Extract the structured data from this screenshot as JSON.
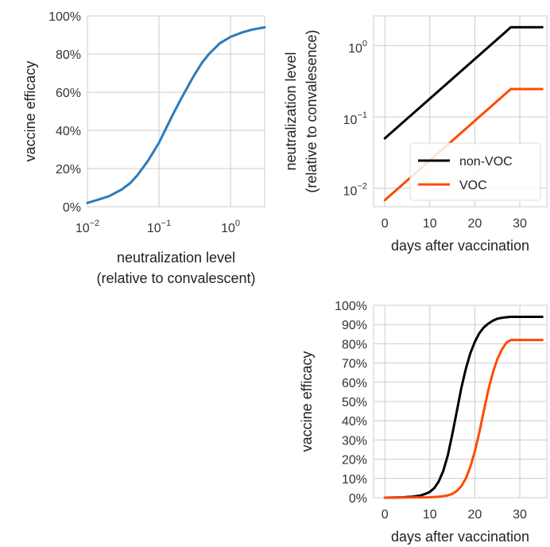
{
  "chart_data": [
    {
      "id": "efficacy-vs-neutralization",
      "type": "line",
      "xscale": "log",
      "xlim": [
        0.01,
        3
      ],
      "ylim": [
        0,
        1
      ],
      "xticks": [
        {
          "value": 0.01,
          "base": "10",
          "exp": "−2"
        },
        {
          "value": 0.1,
          "base": "10",
          "exp": "−1"
        },
        {
          "value": 1,
          "base": "10",
          "exp": "0"
        }
      ],
      "yticks": [
        {
          "value": 0,
          "label": "0%"
        },
        {
          "value": 0.2,
          "label": "20%"
        },
        {
          "value": 0.4,
          "label": "40%"
        },
        {
          "value": 0.6,
          "label": "60%"
        },
        {
          "value": 0.8,
          "label": "80%"
        },
        {
          "value": 1,
          "label": "100%"
        }
      ],
      "xlabel": [
        "neutralization level",
        "(relative to convalescent)"
      ],
      "ylabel": [
        "vaccine efficacy"
      ],
      "grid": true,
      "series": [
        {
          "color": "#2b7bba",
          "x": [
            0.01,
            0.015,
            0.02,
            0.03,
            0.04,
            0.05,
            0.07,
            0.1,
            0.15,
            0.2,
            0.3,
            0.4,
            0.5,
            0.7,
            1.0,
            1.5,
            2.0,
            3.0
          ],
          "y": [
            0.02,
            0.04,
            0.055,
            0.09,
            0.125,
            0.165,
            0.24,
            0.335,
            0.47,
            0.56,
            0.68,
            0.755,
            0.8,
            0.855,
            0.89,
            0.915,
            0.928,
            0.94
          ]
        }
      ]
    },
    {
      "id": "neutralization-vs-days",
      "type": "line",
      "yscale": "log",
      "xlim": [
        -2.5,
        36
      ],
      "ylim": [
        0.0055,
        2.6
      ],
      "xticks": [
        {
          "value": 0,
          "label": "0"
        },
        {
          "value": 10,
          "label": "10"
        },
        {
          "value": 20,
          "label": "20"
        },
        {
          "value": 30,
          "label": "30"
        }
      ],
      "yticks": [
        {
          "value": 0.01,
          "base": "10",
          "exp": "−2"
        },
        {
          "value": 0.1,
          "base": "10",
          "exp": "−1"
        },
        {
          "value": 1,
          "base": "10",
          "exp": "0"
        }
      ],
      "xlabel": [
        "days after vaccination"
      ],
      "ylabel": [
        "neutralization level",
        "(relative to convalesence)"
      ],
      "grid": true,
      "legend": "lower-right",
      "series": [
        {
          "name": "non-VOC",
          "color": "#000000",
          "x": [
            0,
            28,
            35
          ],
          "y": [
            0.05,
            1.8,
            1.8
          ]
        },
        {
          "name": "VOC",
          "color": "#ff4a00",
          "x": [
            0,
            28,
            35
          ],
          "y": [
            0.0068,
            0.245,
            0.245
          ]
        }
      ]
    },
    {
      "id": "efficacy-vs-days",
      "type": "line",
      "xlim": [
        -2.5,
        36
      ],
      "ylim": [
        0,
        1
      ],
      "xticks": [
        {
          "value": 0,
          "label": "0"
        },
        {
          "value": 10,
          "label": "10"
        },
        {
          "value": 20,
          "label": "20"
        },
        {
          "value": 30,
          "label": "30"
        }
      ],
      "yticks": [
        {
          "value": 0,
          "label": "0%"
        },
        {
          "value": 0.1,
          "label": "10%"
        },
        {
          "value": 0.2,
          "label": "20%"
        },
        {
          "value": 0.3,
          "label": "30%"
        },
        {
          "value": 0.4,
          "label": "40%"
        },
        {
          "value": 0.5,
          "label": "50%"
        },
        {
          "value": 0.6,
          "label": "60%"
        },
        {
          "value": 0.7,
          "label": "70%"
        },
        {
          "value": 0.8,
          "label": "80%"
        },
        {
          "value": 0.9,
          "label": "90%"
        },
        {
          "value": 1,
          "label": "100%"
        }
      ],
      "xlabel": [
        "days after vaccination"
      ],
      "ylabel": [
        "vaccine efficacy"
      ],
      "grid": true,
      "series": [
        {
          "color": "#000000",
          "x": [
            0,
            4,
            6,
            8,
            9,
            10,
            11,
            12,
            13,
            14,
            15,
            16,
            17,
            18,
            19,
            20,
            21,
            22,
            23,
            24,
            25,
            26,
            27,
            28,
            30,
            35
          ],
          "y": [
            0.0,
            0.002,
            0.005,
            0.012,
            0.02,
            0.03,
            0.05,
            0.085,
            0.14,
            0.22,
            0.33,
            0.45,
            0.57,
            0.67,
            0.75,
            0.81,
            0.855,
            0.885,
            0.905,
            0.92,
            0.93,
            0.935,
            0.938,
            0.94,
            0.94,
            0.94
          ]
        },
        {
          "color": "#ff4a00",
          "x": [
            0,
            10,
            12,
            14,
            15,
            16,
            17,
            18,
            19,
            20,
            21,
            22,
            23,
            24,
            25,
            26,
            27,
            28,
            30,
            35
          ],
          "y": [
            0.0,
            0.002,
            0.005,
            0.012,
            0.02,
            0.035,
            0.06,
            0.1,
            0.16,
            0.24,
            0.34,
            0.45,
            0.56,
            0.65,
            0.72,
            0.77,
            0.805,
            0.82,
            0.82,
            0.82
          ]
        }
      ]
    }
  ]
}
